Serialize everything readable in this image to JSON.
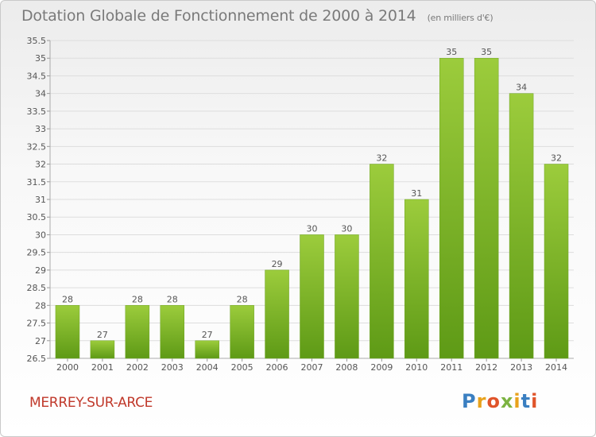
{
  "header": {
    "title": "Dotation Globale de Fonctionnement de 2000 à 2014",
    "unit": "(en milliers d'€)"
  },
  "footer": {
    "commune": "MERREY-SUR-ARCE",
    "logo": "Proxiti"
  },
  "colors": {
    "bar_top": "#9ccc3c",
    "bar_bottom": "#5e9a16",
    "label": "#555555",
    "grid": "#dddddd"
  },
  "chart_data": {
    "type": "bar",
    "categories": [
      "2000",
      "2001",
      "2002",
      "2003",
      "2004",
      "2005",
      "2006",
      "2007",
      "2008",
      "2009",
      "2010",
      "2011",
      "2012",
      "2013",
      "2014"
    ],
    "values": [
      28,
      27,
      28,
      28,
      27,
      28,
      29,
      30,
      30,
      32,
      31,
      35,
      35,
      34,
      32
    ],
    "data_labels": [
      "28",
      "27",
      "28",
      "28",
      "27",
      "28",
      "29",
      "30",
      "30",
      "32",
      "31",
      "35",
      "35",
      "34",
      "32"
    ],
    "yticks": [
      26.5,
      27,
      27.5,
      28,
      28.5,
      29,
      29.5,
      30,
      30.5,
      31,
      31.5,
      32,
      32.5,
      33,
      33.5,
      34,
      34.5,
      35,
      35.5
    ],
    "ylim": [
      26.5,
      35.5
    ],
    "grid": true,
    "legend": false
  }
}
